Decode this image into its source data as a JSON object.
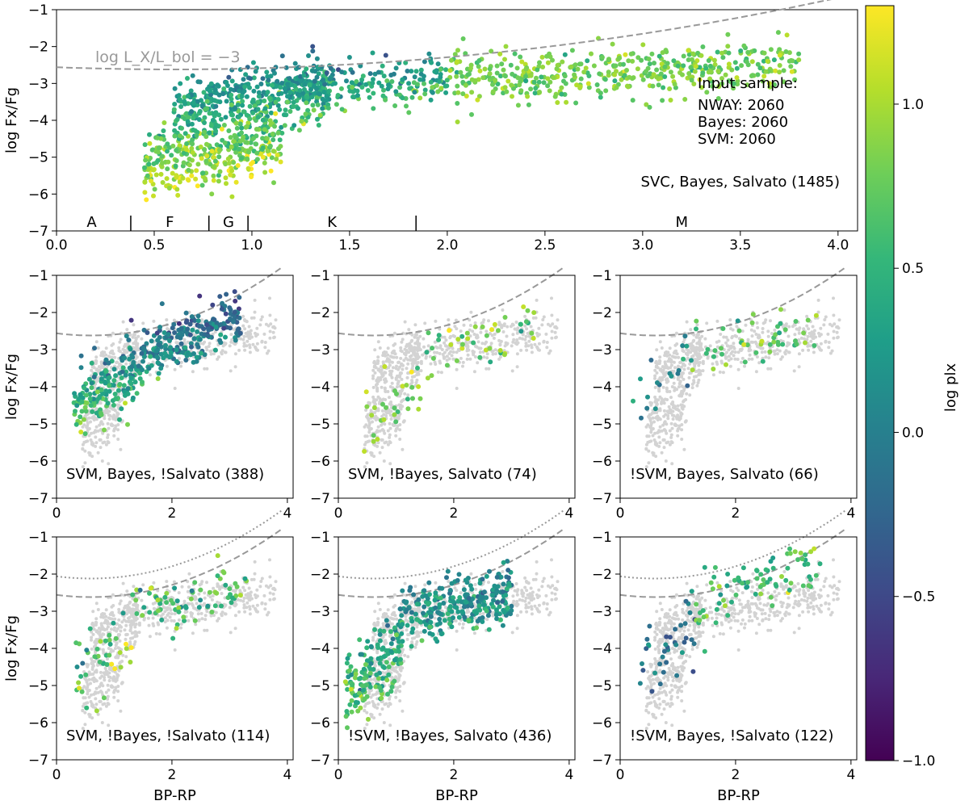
{
  "chart_data": [
    {
      "type": "scatter",
      "panel": "top",
      "ylabel": "log Fx/Fg",
      "xlabel": "",
      "xlim": [
        0.0,
        4.1
      ],
      "ylim": [
        -7,
        -1
      ],
      "xticks": [
        "0.0",
        "0.5",
        "1.0",
        "1.5",
        "2.0",
        "2.5",
        "3.0",
        "3.5",
        "4.0"
      ],
      "xtick_values": [
        0.0,
        0.5,
        1.0,
        1.5,
        2.0,
        2.5,
        3.0,
        3.5,
        4.0
      ],
      "yticks": [
        "−7",
        "−6",
        "−5",
        "−4",
        "−3",
        "−2",
        "−1"
      ],
      "ytick_values": [
        -7,
        -6,
        -5,
        -4,
        -3,
        -2,
        -1
      ],
      "dashed_label": "log L_X/L_bol = −3",
      "annotation": "SVC, Bayes, Salvato (1485)",
      "input_sample": [
        "Input sample:",
        "NWAY: 2060",
        "Bayes: 2060",
        "SVM: 2060"
      ],
      "spectral_types": [
        {
          "label": "A",
          "x": 0.18
        },
        {
          "label": "F",
          "x": 0.58
        },
        {
          "label": "G",
          "x": 0.88
        },
        {
          "label": "K",
          "x": 1.41
        },
        {
          "label": "M",
          "x": 3.2
        }
      ],
      "spectral_boundaries": [
        0.38,
        0.78,
        0.98,
        1.84
      ],
      "points_description": "1485 sources colored by log plx"
    },
    {
      "type": "scatter",
      "panel": "middle-left",
      "ylabel": "log Fx/Fg",
      "annotation": "SVM, Bayes, !Salvato (388)",
      "xlim": [
        0,
        4.1
      ],
      "ylim": [
        -7,
        -1
      ],
      "xticks": [
        "0",
        "2",
        "4"
      ],
      "yticks": [
        "−7",
        "−6",
        "−5",
        "−4",
        "−3",
        "−2",
        "−1"
      ],
      "n_points": 388
    },
    {
      "type": "scatter",
      "panel": "middle-center",
      "ylabel": "",
      "annotation": "SVM, !Bayes, Salvato (74)",
      "xlim": [
        0,
        4.1
      ],
      "ylim": [
        -7,
        -1
      ],
      "xticks": [
        "0",
        "2",
        "4"
      ],
      "yticks": [
        "−7",
        "−6",
        "−5",
        "−4",
        "−3",
        "−2",
        "−1"
      ],
      "n_points": 74
    },
    {
      "type": "scatter",
      "panel": "middle-right",
      "ylabel": "",
      "annotation": "!SVM, Bayes, Salvato (66)",
      "xlim": [
        0,
        4.1
      ],
      "ylim": [
        -7,
        -1
      ],
      "xticks": [
        "0",
        "2",
        "4"
      ],
      "yticks": [
        "−7",
        "−6",
        "−5",
        "−4",
        "−3",
        "−2",
        "−1"
      ],
      "n_points": 66
    },
    {
      "type": "scatter",
      "panel": "bottom-left",
      "ylabel": "log Fx/Fg",
      "xlabel": "BP-RP",
      "annotation": "SVM, !Bayes, !Salvato (114)",
      "xlim": [
        0,
        4.1
      ],
      "ylim": [
        -7,
        -1
      ],
      "xticks": [
        "0",
        "2",
        "4"
      ],
      "yticks": [
        "−7",
        "−6",
        "−5",
        "−4",
        "−3",
        "−2",
        "−1"
      ],
      "n_points": 114
    },
    {
      "type": "scatter",
      "panel": "bottom-center",
      "ylabel": "",
      "xlabel": "BP-RP",
      "annotation": "!SVM, !Bayes, Salvato (436)",
      "xlim": [
        0,
        4.1
      ],
      "ylim": [
        -7,
        -1
      ],
      "xticks": [
        "0",
        "2",
        "4"
      ],
      "yticks": [
        "−7",
        "−6",
        "−5",
        "−4",
        "−3",
        "−2",
        "−1"
      ],
      "n_points": 436
    },
    {
      "type": "scatter",
      "panel": "bottom-right",
      "ylabel": "",
      "xlabel": "BP-RP",
      "annotation": "!SVM, Bayes, !Salvato (122)",
      "xlim": [
        0,
        4.1
      ],
      "ylim": [
        -7,
        -1
      ],
      "xticks": [
        "0",
        "2",
        "4"
      ],
      "yticks": [
        "−7",
        "−6",
        "−5",
        "−4",
        "−3",
        "−2",
        "−1"
      ],
      "n_points": 122
    },
    {
      "type": "colorbar",
      "label": "log plx",
      "range": [
        -1.0,
        1.3
      ],
      "ticks": [
        "−1.0",
        "−0.5",
        "0.0",
        "0.5",
        "1.0"
      ],
      "tick_values": [
        -1.0,
        -0.5,
        0.0,
        0.5,
        1.0
      ],
      "colormap": "viridis",
      "stops": [
        "#440154",
        "#482878",
        "#3e4a89",
        "#31688e",
        "#26828e",
        "#1f9e89",
        "#35b779",
        "#6ece58",
        "#b5de2b",
        "#fde725"
      ]
    }
  ],
  "colors": {
    "background_points": "#d3d3d3",
    "dashed_line": "#999999"
  }
}
